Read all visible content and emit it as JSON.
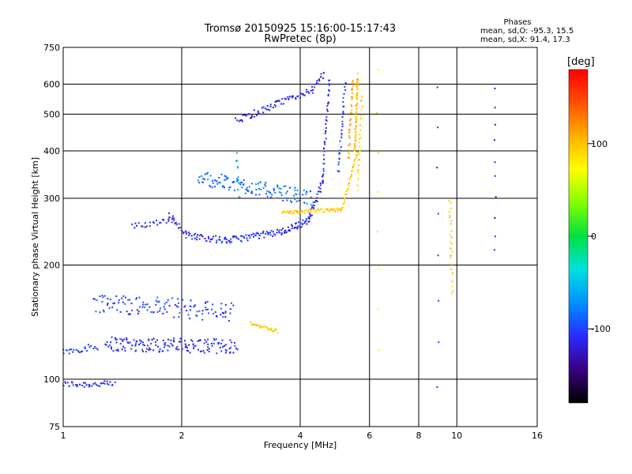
{
  "chart_data": {
    "type": "scatter",
    "title": "Tromsø 20150925  15:16:00-15:17:43",
    "subtitle": "RwPretec (8p)",
    "xlabel": "Frequency [MHz]",
    "ylabel": "Stationary phase Virtual Height [km]",
    "x_scale": "log",
    "y_scale": "log",
    "xlim": [
      1,
      16
    ],
    "ylim": [
      75,
      750
    ],
    "x_ticks": [
      1,
      2,
      4,
      6,
      8,
      10,
      16
    ],
    "y_ticks": [
      75,
      100,
      200,
      300,
      400,
      500,
      600,
      750
    ],
    "grid": true,
    "phases_header": "Phases",
    "phase_stats": [
      "mean, sd,O:  -95.3,  15.5",
      "mean, sd,X:   91.4,  17.3"
    ],
    "colorbar": {
      "label": "[deg]",
      "ticks": [
        100,
        0,
        -100
      ],
      "range": [
        -180,
        180
      ],
      "colors": [
        "#000000",
        "#3a0080",
        "#2a2aff",
        "#0090ff",
        "#00e0e0",
        "#00e040",
        "#80ff00",
        "#ffff00",
        "#ffb000",
        "#ff5000",
        "#ff0000"
      ]
    },
    "series": [
      {
        "values": [
          {
            "from": [
              1.0,
              97
            ],
            "to": [
              1.35,
              97
            ],
            "n": 40,
            "phase": -110
          },
          {
            "from": [
              1.0,
              118
            ],
            "to": [
              1.22,
              122
            ],
            "n": 25,
            "phase": -105
          },
          {
            "from": [
              1.28,
              124
            ],
            "to": [
              2.75,
              122
            ],
            "n": 160,
            "phase": -110,
            "jitter": 0.09
          },
          {
            "from": [
              1.2,
              160
            ],
            "to": [
              2.7,
              150
            ],
            "n": 130,
            "phase": -100,
            "jitter": 0.12
          },
          {
            "from": [
              1.85,
              272
            ],
            "to": [
              2.05,
              240
            ],
            "n": 20,
            "phase": -110
          },
          {
            "from": [
              1.5,
              252
            ],
            "to": [
              1.9,
              265
            ],
            "n": 25,
            "phase": -110
          },
          {
            "from": [
              2.05,
              240
            ],
            "to": [
              2.6,
              232
            ],
            "n": 40,
            "phase": -110
          },
          {
            "from": [
              2.6,
              232
            ],
            "to": [
              3.6,
              245
            ],
            "n": 60,
            "phase": -105
          },
          {
            "from": [
              3.6,
              245
            ],
            "to": [
              4.2,
              262
            ],
            "n": 40,
            "phase": -110
          },
          {
            "from": [
              4.2,
              262
            ],
            "to": [
              4.55,
              330
            ],
            "n": 30,
            "phase": -110
          },
          {
            "from": [
              4.55,
              330
            ],
            "to": [
              4.75,
              620
            ],
            "n": 40,
            "phase": -110,
            "jitter": 0.03
          },
          {
            "from": [
              2.2,
              340
            ],
            "to": [
              4.3,
              300
            ],
            "n": 130,
            "phase": -85,
            "jitter": 0.09
          },
          {
            "from": [
              2.75,
              480
            ],
            "to": [
              4.3,
              580
            ],
            "n": 70,
            "phase": -115
          },
          {
            "from": [
              4.3,
              580
            ],
            "to": [
              4.6,
              640
            ],
            "n": 15,
            "phase": -115
          },
          {
            "from": [
              5.0,
              350
            ],
            "to": [
              5.2,
              600
            ],
            "n": 30,
            "phase": -100,
            "jitter": 0.03
          },
          {
            "from": [
              2.75,
              390
            ],
            "to": [
              2.8,
              300
            ],
            "n": 12,
            "phase": -60
          },
          {
            "from": [
              3.6,
              275
            ],
            "to": [
              5.1,
              280
            ],
            "n": 70,
            "phase": 95,
            "jitter": 0.02
          },
          {
            "from": [
              5.1,
              280
            ],
            "to": [
              5.6,
              400
            ],
            "n": 35,
            "phase": 95,
            "jitter": 0.02
          },
          {
            "from": [
              5.5,
              400
            ],
            "to": [
              5.6,
              630
            ],
            "n": 60,
            "phase": 100,
            "jitter": 0.03
          },
          {
            "from": [
              5.3,
              380
            ],
            "to": [
              5.45,
              620
            ],
            "n": 30,
            "phase": 110,
            "jitter": 0.03
          },
          {
            "from": [
              5.6,
              320
            ],
            "to": [
              5.75,
              560
            ],
            "n": 30,
            "phase": 90,
            "jitter": 0.03
          },
          {
            "from": [
              3.0,
              140
            ],
            "to": [
              3.5,
              134
            ],
            "n": 30,
            "phase": 95,
            "jitter": 0.02
          },
          {
            "from": [
              9.6,
              300
            ],
            "to": [
              9.75,
              170
            ],
            "n": 25,
            "phase": 95
          },
          {
            "from": [
              8.9,
              600
            ],
            "to": [
              8.95,
              95
            ],
            "n": 8,
            "phase": -110
          },
          {
            "from": [
              12.5,
              590
            ],
            "to": [
              12.5,
              215
            ],
            "n": 10,
            "phase": -120
          },
          {
            "from": [
              6.3,
              650
            ],
            "to": [
              6.3,
              120
            ],
            "n": 8,
            "phase": 60
          }
        ]
      }
    ]
  }
}
